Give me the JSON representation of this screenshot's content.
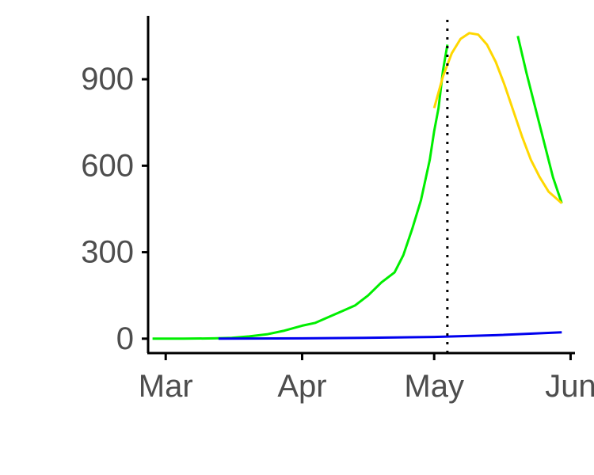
{
  "chart_data": {
    "type": "line",
    "title": "",
    "xlabel": "",
    "ylabel": "",
    "x_axis": {
      "type": "date",
      "range": [
        "2020-02-26",
        "2020-06-02"
      ],
      "ticks": [
        {
          "value": "2020-03-01",
          "label": "Mar"
        },
        {
          "value": "2020-04-01",
          "label": "Apr"
        },
        {
          "value": "2020-05-01",
          "label": "May"
        },
        {
          "value": "2020-06-01",
          "label": "Jun"
        }
      ]
    },
    "y_axis": {
      "range": [
        -50,
        1120
      ],
      "ticks": [
        0,
        300,
        600,
        900
      ]
    },
    "grid": false,
    "legend": "none",
    "vline": {
      "x": "2020-05-04",
      "style": "dotted",
      "color": "#000000"
    },
    "series": [
      {
        "color": "#00ee00",
        "points": [
          [
            "2020-02-27",
            0
          ],
          [
            "2020-03-05",
            0
          ],
          [
            "2020-03-12",
            1
          ],
          [
            "2020-03-16",
            3
          ],
          [
            "2020-03-20",
            8
          ],
          [
            "2020-03-24",
            15
          ],
          [
            "2020-03-28",
            28
          ],
          [
            "2020-04-01",
            45
          ],
          [
            "2020-04-04",
            55
          ],
          [
            "2020-04-07",
            75
          ],
          [
            "2020-04-10",
            95
          ],
          [
            "2020-04-13",
            115
          ],
          [
            "2020-04-16",
            150
          ],
          [
            "2020-04-19",
            195
          ],
          [
            "2020-04-22",
            230
          ],
          [
            "2020-04-24",
            290
          ],
          [
            "2020-04-26",
            380
          ],
          [
            "2020-04-28",
            480
          ],
          [
            "2020-04-30",
            620
          ],
          [
            "2020-05-01",
            720
          ],
          [
            "2020-05-02",
            800
          ],
          [
            "2020-05-03",
            930
          ],
          [
            "2020-05-04",
            1020
          ]
        ]
      },
      {
        "color": "#00ee00",
        "points": [
          [
            "2020-05-20",
            1050
          ],
          [
            "2020-05-22",
            920
          ],
          [
            "2020-05-24",
            800
          ],
          [
            "2020-05-26",
            680
          ],
          [
            "2020-05-28",
            560
          ],
          [
            "2020-05-30",
            470
          ]
        ]
      },
      {
        "color": "#ffd700",
        "points": [
          [
            "2020-05-01",
            800
          ],
          [
            "2020-05-03",
            910
          ],
          [
            "2020-05-05",
            990
          ],
          [
            "2020-05-07",
            1040
          ],
          [
            "2020-05-09",
            1060
          ],
          [
            "2020-05-11",
            1055
          ],
          [
            "2020-05-13",
            1020
          ],
          [
            "2020-05-15",
            960
          ],
          [
            "2020-05-17",
            880
          ],
          [
            "2020-05-19",
            790
          ],
          [
            "2020-05-21",
            700
          ],
          [
            "2020-05-23",
            620
          ],
          [
            "2020-05-25",
            560
          ],
          [
            "2020-05-27",
            510
          ],
          [
            "2020-05-30",
            470
          ]
        ]
      },
      {
        "color": "#0000ee",
        "points": [
          [
            "2020-03-13",
            0
          ],
          [
            "2020-04-01",
            1
          ],
          [
            "2020-04-15",
            3
          ],
          [
            "2020-05-01",
            6
          ],
          [
            "2020-05-15",
            12
          ],
          [
            "2020-05-30",
            22
          ]
        ]
      }
    ]
  }
}
